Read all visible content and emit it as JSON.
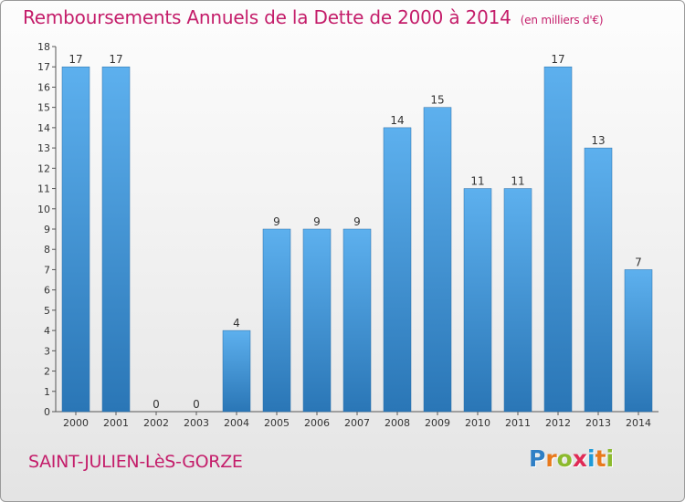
{
  "header": {
    "title": "Remboursements Annuels de la Dette de 2000 à 2014",
    "unit": "(en milliers d'€)"
  },
  "footer": {
    "town": "SAINT-JULIEN-LèS-GORZE",
    "logo": {
      "letters": [
        "P",
        "r",
        "o",
        "x",
        "i",
        "t",
        "i"
      ],
      "colors": [
        "#2f7fc5",
        "#e8791c",
        "#8cba2d",
        "#e02a55",
        "#1f9ad7",
        "#e8791c",
        "#8cba2d"
      ]
    }
  },
  "chart_data": {
    "type": "bar",
    "title": "Remboursements Annuels de la Dette de 2000 à 2014",
    "categories": [
      "2000",
      "2001",
      "2002",
      "2003",
      "2004",
      "2005",
      "2006",
      "2007",
      "2008",
      "2009",
      "2010",
      "2011",
      "2012",
      "2013",
      "2014"
    ],
    "values": [
      17,
      17,
      0,
      0,
      4,
      9,
      9,
      9,
      14,
      15,
      11,
      11,
      17,
      13,
      7
    ],
    "ylim": [
      0,
      18
    ],
    "yticks": [
      0,
      1,
      2,
      3,
      4,
      5,
      6,
      7,
      8,
      9,
      10,
      11,
      12,
      13,
      14,
      15,
      16,
      17,
      18
    ],
    "grid": false,
    "bar_color": "#4fa3e2"
  }
}
